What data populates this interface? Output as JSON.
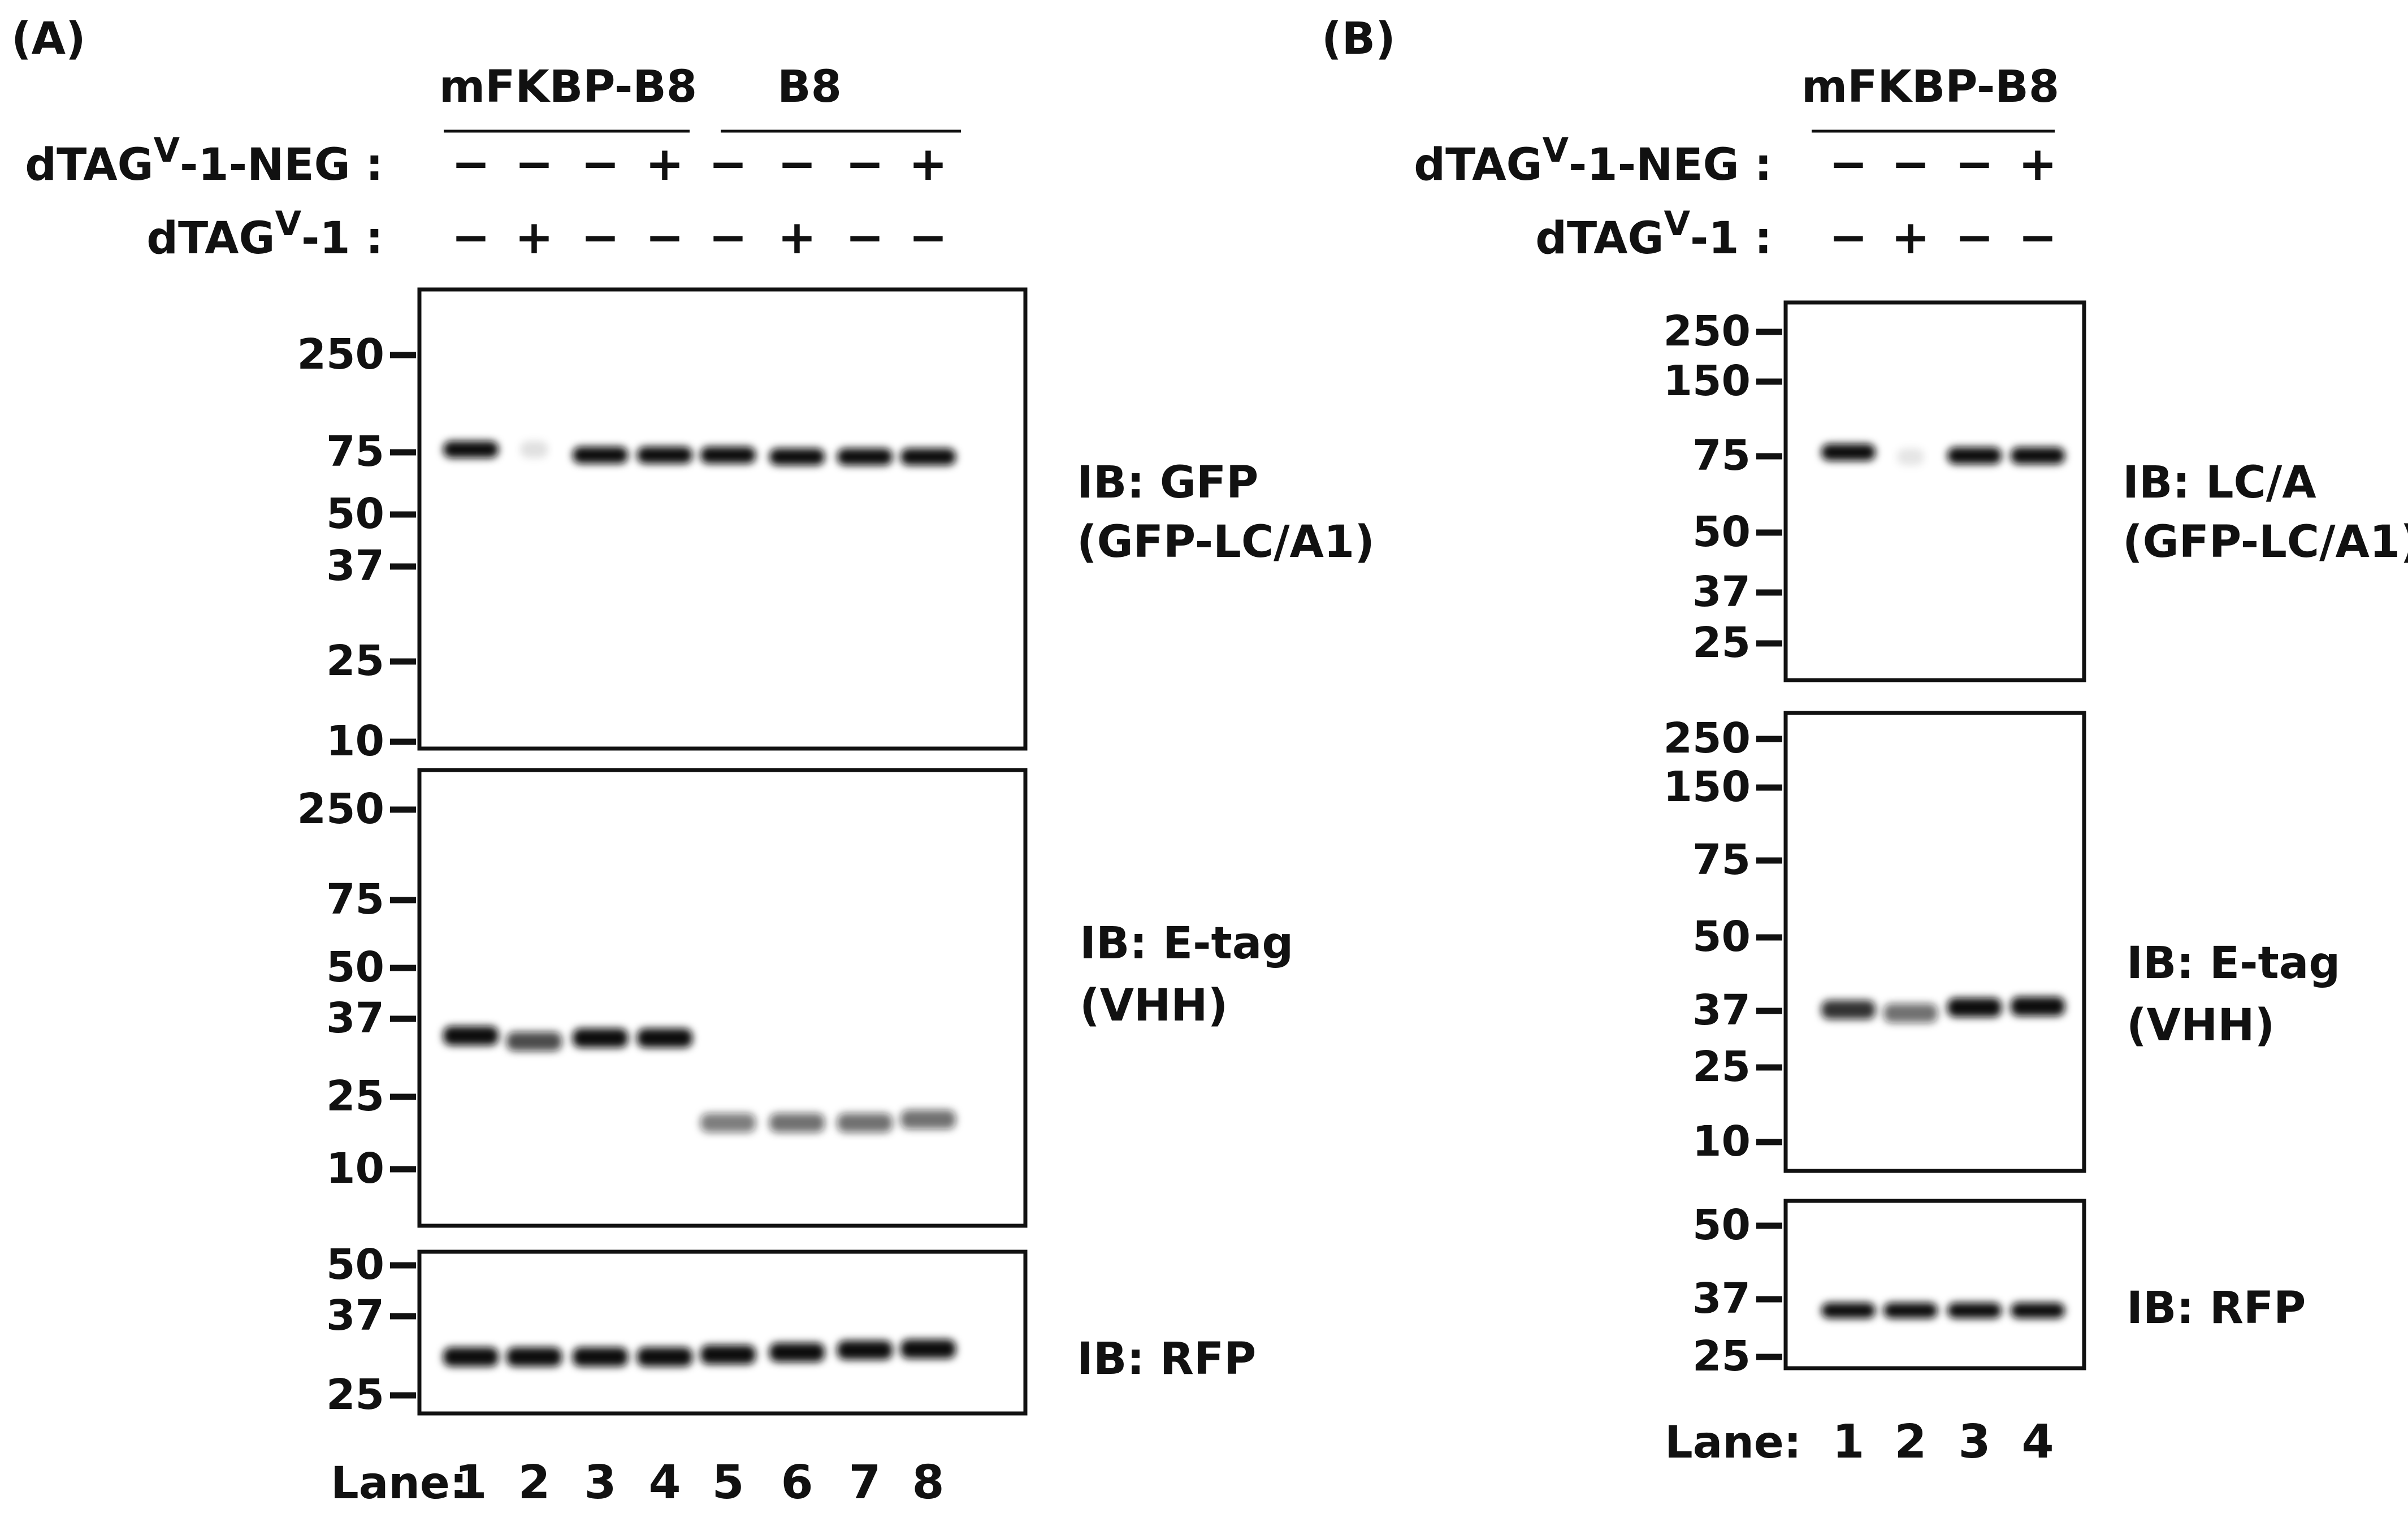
{
  "panels": [
    {
      "id": "A",
      "label": "(A)",
      "groups": [
        "mFKBP-B8",
        "B8"
      ],
      "treatments": [
        {
          "prefix": "dTAG",
          "sup": "V",
          "suffix": "-1-NEG :",
          "signs": [
            "−",
            "−",
            "−",
            "+",
            "−",
            "−",
            "−",
            "+"
          ]
        },
        {
          "prefix": "dTAG",
          "sup": "V",
          "suffix": "-1 :",
          "signs": [
            "−",
            "+",
            "−",
            "−",
            "−",
            "+",
            "−",
            "−"
          ]
        }
      ],
      "blots": [
        {
          "markers": [
            "250",
            "75",
            "50",
            "37",
            "25",
            "10"
          ],
          "ib": [
            "IB: GFP",
            "(GFP-LC/A1)"
          ],
          "band_intensity": [
            1.0,
            0.12,
            1.0,
            1.0,
            1.0,
            1.0,
            1.0,
            1.0
          ]
        },
        {
          "markers": [
            "250",
            "75",
            "50",
            "37",
            "25",
            "10"
          ],
          "ib": [
            "IB: E-tag",
            "(VHH)"
          ],
          "band_intensity": [
            1.0,
            0.75,
            1.0,
            1.0,
            0.55,
            0.6,
            0.6,
            0.6
          ]
        },
        {
          "markers": [
            "50",
            "37",
            "25"
          ],
          "ib": [
            "IB: RFP"
          ],
          "band_intensity": [
            1.0,
            1.0,
            1.0,
            1.0,
            1.0,
            1.0,
            1.0,
            1.0
          ]
        }
      ],
      "lane_label": "Lane:",
      "lanes": [
        "1",
        "2",
        "3",
        "4",
        "5",
        "6",
        "7",
        "8"
      ]
    },
    {
      "id": "B",
      "label": "(B)",
      "groups": [
        "mFKBP-B8"
      ],
      "treatments": [
        {
          "prefix": "dTAG",
          "sup": "V",
          "suffix": "-1-NEG :",
          "signs": [
            "−",
            "−",
            "−",
            "+"
          ]
        },
        {
          "prefix": "dTAG",
          "sup": "V",
          "suffix": "-1 :",
          "signs": [
            "−",
            "+",
            "−",
            "−"
          ]
        }
      ],
      "blots": [
        {
          "markers": [
            "250",
            "150",
            "75",
            "50",
            "37",
            "25"
          ],
          "ib": [
            "IB: LC/A",
            "(GFP-LC/A1)"
          ],
          "band_intensity": [
            1.0,
            0.1,
            1.0,
            1.0
          ]
        },
        {
          "markers": [
            "250",
            "150",
            "75",
            "50",
            "37",
            "25",
            "10"
          ],
          "ib": [
            "IB: E-tag",
            "(VHH)"
          ],
          "band_intensity": [
            0.85,
            0.6,
            1.0,
            1.0
          ]
        },
        {
          "markers": [
            "50",
            "37",
            "25"
          ],
          "ib": [
            "IB: RFP"
          ],
          "band_intensity": [
            1.0,
            1.0,
            1.0,
            1.0
          ]
        }
      ],
      "lane_label": "Lane:",
      "lanes": [
        "1",
        "2",
        "3",
        "4"
      ]
    }
  ]
}
